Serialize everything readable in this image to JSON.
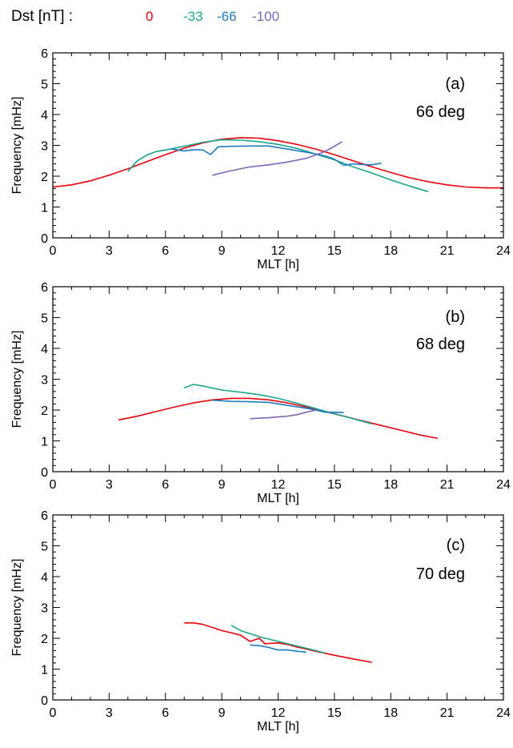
{
  "legend": {
    "title": "Dst [nT] :",
    "entries": [
      {
        "label": "0",
        "color": "#e8000b"
      },
      {
        "label": "-33",
        "color": "#1aa58a"
      },
      {
        "label": "-66",
        "color": "#1f7bbf"
      },
      {
        "label": "-100",
        "color": "#7d66b8"
      }
    ]
  },
  "chart_data": [
    {
      "type": "line",
      "panel_label": "(a)",
      "latitude_label": "66 deg",
      "xlabel": "MLT [h]",
      "ylabel": "Frequency [mHz]",
      "xlim": [
        0,
        24
      ],
      "ylim": [
        0,
        6
      ],
      "xticks": [
        0,
        3,
        6,
        9,
        12,
        15,
        18,
        21,
        24
      ],
      "yticks": [
        0,
        1,
        2,
        3,
        4,
        5,
        6
      ],
      "series": [
        {
          "name": "0",
          "color": "#e8000b",
          "x": [
            0,
            1,
            2,
            3,
            4,
            5,
            6,
            7,
            8,
            9,
            10,
            11,
            12,
            13,
            14,
            15,
            16,
            17,
            18,
            19,
            20,
            21,
            22,
            23,
            24
          ],
          "y": [
            1.65,
            1.72,
            1.85,
            2.03,
            2.24,
            2.47,
            2.7,
            2.91,
            3.08,
            3.2,
            3.25,
            3.23,
            3.15,
            3.03,
            2.88,
            2.7,
            2.5,
            2.3,
            2.12,
            1.95,
            1.82,
            1.72,
            1.65,
            1.62,
            1.62
          ]
        },
        {
          "name": "-33",
          "color": "#1aa58a",
          "x": [
            4.0,
            4.5,
            5.0,
            5.5,
            6.0,
            7.0,
            8.0,
            9.0,
            10.0,
            11.0,
            12.0,
            13.0,
            14.0,
            15.0,
            16.0,
            17.0,
            18.0,
            19.0,
            20.0
          ],
          "y": [
            2.15,
            2.5,
            2.68,
            2.8,
            2.85,
            2.97,
            3.1,
            3.18,
            3.17,
            3.12,
            3.03,
            2.9,
            2.72,
            2.53,
            2.3,
            2.1,
            1.88,
            1.68,
            1.5
          ]
        },
        {
          "name": "-66",
          "color": "#1f7bbf",
          "x": [
            6.3,
            7.0,
            7.5,
            8.0,
            8.4,
            8.8,
            9.5,
            10.5,
            11.5,
            12.5,
            13.5,
            14.5,
            15.0,
            15.5,
            16.0,
            16.5,
            17.0,
            17.5
          ],
          "y": [
            2.88,
            2.82,
            2.86,
            2.85,
            2.7,
            2.95,
            2.97,
            2.98,
            2.98,
            2.88,
            2.78,
            2.66,
            2.55,
            2.35,
            2.4,
            2.38,
            2.37,
            2.42
          ]
        },
        {
          "name": "-100",
          "color": "#7d66b8",
          "x": [
            8.5,
            9.5,
            10.5,
            11.5,
            12.5,
            13.5,
            14.5,
            15.0,
            15.4
          ],
          "y": [
            2.03,
            2.18,
            2.3,
            2.37,
            2.46,
            2.58,
            2.8,
            2.97,
            3.12
          ]
        }
      ]
    },
    {
      "type": "line",
      "panel_label": "(b)",
      "latitude_label": "68 deg",
      "xlabel": "MLT [h]",
      "ylabel": "Frequency [mHz]",
      "xlim": [
        0,
        24
      ],
      "ylim": [
        0,
        6
      ],
      "xticks": [
        0,
        3,
        6,
        9,
        12,
        15,
        18,
        21,
        24
      ],
      "yticks": [
        0,
        1,
        2,
        3,
        4,
        5,
        6
      ],
      "series": [
        {
          "name": "0",
          "color": "#e8000b",
          "x": [
            3.5,
            4.5,
            5.5,
            6.5,
            7.5,
            8.5,
            9.5,
            10.5,
            11.5,
            12.5,
            13.5,
            14.5,
            15.5,
            16.5,
            17.5,
            18.5,
            19.5,
            20.5
          ],
          "y": [
            1.68,
            1.8,
            1.95,
            2.1,
            2.23,
            2.33,
            2.38,
            2.38,
            2.33,
            2.23,
            2.1,
            1.95,
            1.8,
            1.65,
            1.5,
            1.35,
            1.2,
            1.08
          ]
        },
        {
          "name": "-33",
          "color": "#1aa58a",
          "x": [
            7.0,
            7.5,
            8.0,
            9.0,
            10.0,
            11.0,
            12.0,
            13.0,
            14.0,
            15.0,
            16.0,
            17.0
          ],
          "y": [
            2.72,
            2.83,
            2.78,
            2.65,
            2.58,
            2.5,
            2.38,
            2.22,
            2.05,
            1.88,
            1.72,
            1.55
          ]
        },
        {
          "name": "-66",
          "color": "#1f7bbf",
          "x": [
            8.5,
            9.5,
            10.5,
            11.5,
            12.5,
            13.5,
            14.0,
            14.5,
            15.5
          ],
          "y": [
            2.32,
            2.28,
            2.27,
            2.25,
            2.15,
            2.06,
            2.0,
            1.93,
            1.92
          ]
        },
        {
          "name": "-100",
          "color": "#7d66b8",
          "x": [
            10.5,
            11.5,
            12.5,
            13.0,
            13.5,
            14.0
          ],
          "y": [
            1.72,
            1.75,
            1.8,
            1.85,
            1.93,
            2.0
          ]
        }
      ]
    },
    {
      "type": "line",
      "panel_label": "(c)",
      "latitude_label": "70 deg",
      "xlabel": "MLT [h]",
      "ylabel": "Frequency [mHz]",
      "xlim": [
        0,
        24
      ],
      "ylim": [
        0,
        6
      ],
      "xticks": [
        0,
        3,
        6,
        9,
        12,
        15,
        18,
        21,
        24
      ],
      "yticks": [
        0,
        1,
        2,
        3,
        4,
        5,
        6
      ],
      "series": [
        {
          "name": "0",
          "color": "#e8000b",
          "x": [
            7.0,
            7.5,
            8.0,
            8.5,
            9.0,
            9.5,
            10.0,
            10.5,
            11.0,
            11.3,
            11.5,
            12.0,
            12.5,
            13.0,
            14.0,
            15.0,
            16.0,
            17.0
          ],
          "y": [
            2.5,
            2.5,
            2.45,
            2.35,
            2.25,
            2.18,
            2.1,
            1.9,
            2.0,
            1.82,
            1.83,
            1.85,
            1.8,
            1.72,
            1.58,
            1.45,
            1.33,
            1.22
          ]
        },
        {
          "name": "-33",
          "color": "#1aa58a",
          "x": [
            9.5,
            10.0,
            11.0,
            12.0,
            13.0,
            14.0,
            14.5
          ],
          "y": [
            2.42,
            2.25,
            2.05,
            1.9,
            1.75,
            1.6,
            1.52
          ]
        },
        {
          "name": "-66",
          "color": "#1f7bbf",
          "x": [
            10.5,
            11.0,
            11.5,
            12.0,
            12.5,
            13.0,
            13.5
          ],
          "y": [
            1.78,
            1.76,
            1.7,
            1.62,
            1.62,
            1.58,
            1.55
          ]
        }
      ]
    }
  ]
}
